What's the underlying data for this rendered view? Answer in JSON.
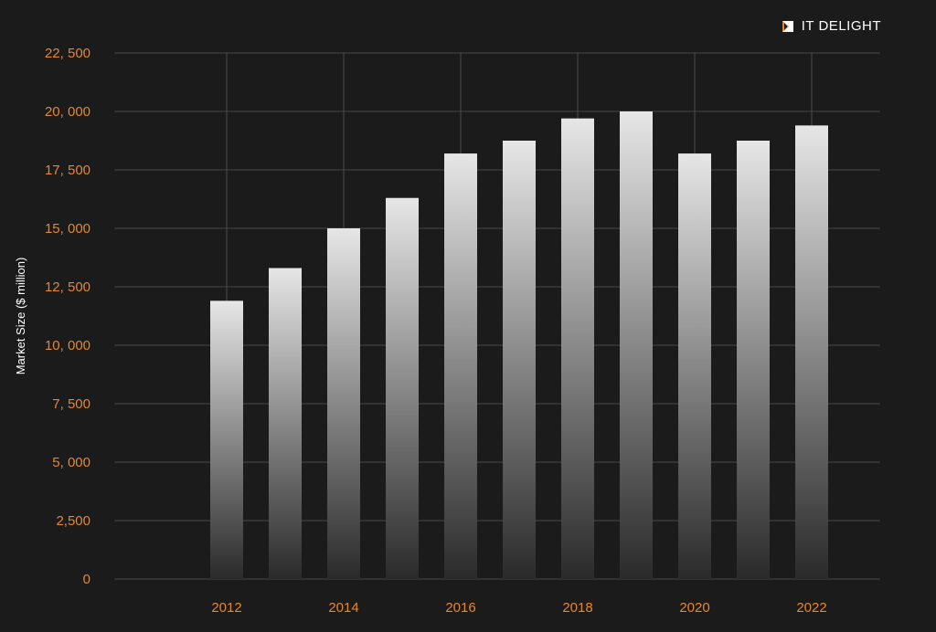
{
  "brand": {
    "name": "IT DELIGHT",
    "logo_icon": "it-delight-logo-icon"
  },
  "colors": {
    "background": "#1b1b1b",
    "grid": "#4a4a4a",
    "tick_label": "#e8862a",
    "axis_label": "#ffffff",
    "bar_top": "#e6e6e6",
    "bar_bottom": "#2a2a2a",
    "logo_accent": "#e8862a"
  },
  "chart_data": {
    "type": "bar",
    "title": "",
    "xlabel": "",
    "ylabel": "Market Size ($ million)",
    "categories": [
      "2012",
      "2013",
      "2014",
      "2015",
      "2016",
      "2017",
      "2018",
      "2019",
      "2020",
      "2021",
      "2022"
    ],
    "values": [
      11900,
      13300,
      15000,
      16300,
      18200,
      18750,
      19700,
      20000,
      18200,
      18750,
      19400
    ],
    "ylim": [
      0,
      22500
    ],
    "yticks": [
      "0",
      "2,500",
      "5, 000",
      "7, 500",
      "10, 000",
      "12, 500",
      "15, 000",
      "17, 500",
      "20, 000",
      "22, 500"
    ],
    "ytick_values": [
      0,
      2500,
      5000,
      7500,
      10000,
      12500,
      15000,
      17500,
      20000,
      22500
    ],
    "xticks": [
      "2012",
      "2014",
      "2016",
      "2018",
      "2020",
      "2022"
    ],
    "grid": true,
    "legend": false
  }
}
